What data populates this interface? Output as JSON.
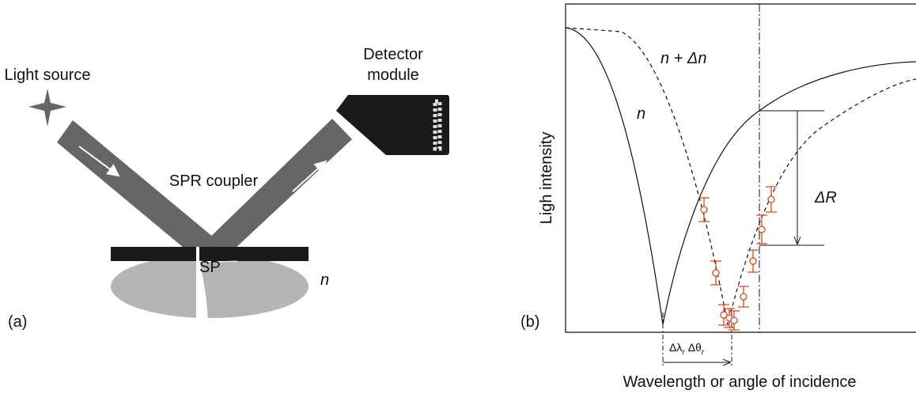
{
  "panel_a": {
    "label": "(a)",
    "light_source": "Light source",
    "detector": [
      "Detector",
      "module"
    ],
    "coupler": "SPR coupler",
    "sp": "SP",
    "medium": "n"
  },
  "panel_b": {
    "label": "(b)",
    "y_label": "Ligh intensity",
    "x_label": "Wavelength or angle of incidence",
    "curve_shifted": "n + Δn",
    "curve_original": "n",
    "delta_r": "ΔR",
    "shift_label": [
      "Δλ",
      "r",
      "Δθ",
      "r"
    ]
  }
}
